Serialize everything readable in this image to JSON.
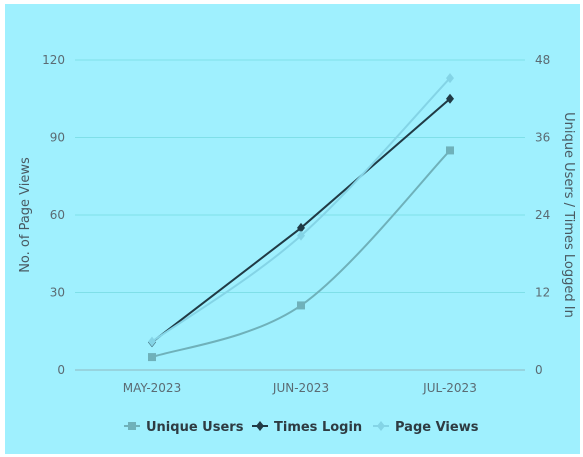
{
  "chart_data": {
    "type": "line",
    "categories": [
      "MAY-2023",
      "JUN-2023",
      "JUL-2023"
    ],
    "y_left": {
      "label": "No. of Page Views",
      "ticks": [
        "0",
        "30",
        "60",
        "90",
        "120"
      ],
      "range": [
        0,
        120
      ]
    },
    "y_right": {
      "label": "Unique Users / Times Logged In",
      "ticks": [
        "0",
        "12",
        "24",
        "36",
        "48"
      ],
      "range": [
        0,
        48
      ]
    },
    "series": [
      {
        "name": "Unique Users",
        "axis": "right",
        "values": [
          2,
          10,
          34
        ],
        "color": "#6fb1ba",
        "marker": "square",
        "smooth": true
      },
      {
        "name": "Times Login",
        "axis": "right",
        "values": [
          4.3,
          22,
          42
        ],
        "color": "#203a45",
        "marker": "diamond",
        "smooth": false
      },
      {
        "name": "Page Views",
        "axis": "left",
        "values": [
          11,
          52,
          113
        ],
        "color": "#84d4e6",
        "marker": "diamond",
        "smooth": true
      }
    ],
    "grid": true,
    "legend_position": "bottom"
  }
}
